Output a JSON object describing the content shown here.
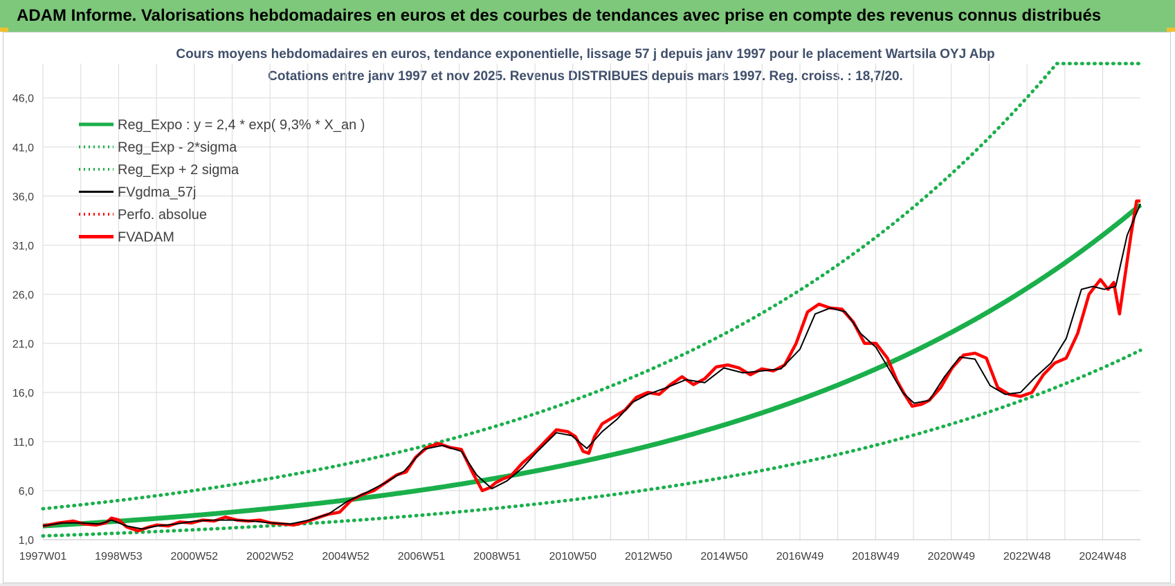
{
  "banner": {
    "title": "ADAM Informe. Valorisations hebdomadaires en euros et des courbes de tendances avec prise en compte des revenus connus distribués"
  },
  "chart_data": {
    "type": "line",
    "title_line1": "Cours moyens hebdomadaires en euros, tendance exponentielle, lissage 57 j depuis janv 1997  pour le placement Wartsila OYJ Abp",
    "title_line2": "Cotations entre janv 1997 et nov 2025. Revenus DISTRIBUES depuis mars 1997.  Reg. croiss. : 18,7/20.",
    "x_range": [
      1997.0,
      2025.85
    ],
    "ylim": [
      1.0,
      49.5
    ],
    "y_ticks": [
      1.0,
      6.0,
      11.0,
      16.0,
      21.0,
      26.0,
      31.0,
      36.0,
      41.0,
      46.0
    ],
    "y_tick_labels": [
      "1,0",
      "6,0",
      "11,0",
      "16,0",
      "21,0",
      "26,0",
      "31,0",
      "36,0",
      "41,0",
      "46,0"
    ],
    "x_ticks": [
      1997.0,
      1998.99,
      2000.98,
      2002.97,
      2004.96,
      2006.95,
      2008.94,
      2010.93,
      2012.92,
      2014.91,
      2016.9,
      2018.89,
      2020.88,
      2022.87,
      2024.86
    ],
    "x_tick_labels": [
      "1997W01",
      "1998W53",
      "2000W52",
      "2002W52",
      "2004W52",
      "2006W51",
      "2008W51",
      "2010W50",
      "2012W50",
      "2014W50",
      "2016W49",
      "2018W49",
      "2020W49",
      "2022W48",
      "2024W48"
    ],
    "trend": {
      "a": 2.4,
      "rate": 0.093,
      "sigma_factor": 1.73
    },
    "legend": [
      {
        "label": "Reg_Expo : y = 2,4 * exp( 9,3% *  X_an )",
        "color": "#1aaf4b",
        "style": "solid-thick"
      },
      {
        "label": "Reg_Exp - 2*sigma",
        "color": "#1aaf4b",
        "style": "dotted"
      },
      {
        "label": "Reg_Exp + 2 sigma",
        "color": "#1aaf4b",
        "style": "dotted"
      },
      {
        "label": "FVgdma_57j",
        "color": "#000000",
        "style": "solid"
      },
      {
        "label": "Perfo. absolue",
        "color": "#ff0000",
        "style": "dotted"
      },
      {
        "label": "FVADAM",
        "color": "#ff0000",
        "style": "solid-thick"
      }
    ],
    "series": [
      {
        "name": "FVADAM",
        "x": [
          1997.0,
          1997.4,
          1997.8,
          1998.1,
          1998.4,
          1998.65,
          1998.8,
          1999.0,
          1999.2,
          1999.5,
          1999.8,
          2000.0,
          2000.3,
          2000.6,
          2000.9,
          2001.2,
          2001.5,
          2001.8,
          2002.1,
          2002.4,
          2002.7,
          2003.0,
          2003.3,
          2003.6,
          2003.9,
          2004.2,
          2004.5,
          2004.8,
          2005.1,
          2005.4,
          2005.7,
          2006.0,
          2006.3,
          2006.55,
          2006.8,
          2007.1,
          2007.4,
          2007.7,
          2008.0,
          2008.3,
          2008.55,
          2008.75,
          2008.9,
          2009.1,
          2009.3,
          2009.6,
          2009.9,
          2010.2,
          2010.5,
          2010.8,
          2011.0,
          2011.2,
          2011.35,
          2011.5,
          2011.7,
          2012.0,
          2012.3,
          2012.6,
          2012.9,
          2013.2,
          2013.5,
          2013.8,
          2014.1,
          2014.4,
          2014.7,
          2015.0,
          2015.3,
          2015.6,
          2015.9,
          2016.2,
          2016.5,
          2016.8,
          2017.1,
          2017.4,
          2017.7,
          2018.0,
          2018.3,
          2018.6,
          2018.9,
          2019.2,
          2019.45,
          2019.65,
          2019.85,
          2020.1,
          2020.3,
          2020.6,
          2020.9,
          2021.2,
          2021.5,
          2021.8,
          2022.1,
          2022.4,
          2022.7,
          2023.0,
          2023.3,
          2023.6,
          2023.9,
          2024.2,
          2024.5,
          2024.8,
          2025.0,
          2025.15,
          2025.3,
          2025.45,
          2025.6,
          2025.75,
          2025.85
        ],
        "y": [
          2.4,
          2.7,
          2.9,
          2.6,
          2.5,
          2.7,
          3.2,
          3.0,
          2.3,
          1.9,
          2.3,
          2.5,
          2.4,
          2.8,
          2.7,
          3.0,
          2.9,
          3.3,
          3.0,
          2.9,
          3.0,
          2.7,
          2.6,
          2.5,
          2.8,
          3.2,
          3.6,
          3.8,
          5.0,
          5.6,
          6.0,
          6.8,
          7.6,
          7.9,
          9.4,
          10.4,
          10.8,
          10.4,
          10.2,
          7.8,
          6.0,
          6.3,
          6.8,
          7.2,
          7.5,
          8.8,
          9.8,
          11.0,
          12.2,
          12.0,
          11.5,
          10.0,
          9.8,
          11.5,
          12.8,
          13.5,
          14.2,
          15.5,
          16.0,
          15.8,
          16.8,
          17.6,
          16.8,
          17.4,
          18.6,
          18.8,
          18.5,
          17.8,
          18.4,
          18.2,
          18.8,
          21.0,
          24.2,
          25.0,
          24.6,
          24.5,
          23.2,
          21.0,
          21.0,
          19.5,
          17.2,
          15.8,
          14.6,
          14.8,
          15.2,
          16.5,
          18.5,
          19.8,
          20.0,
          19.5,
          16.5,
          15.8,
          15.6,
          16.0,
          17.8,
          19.0,
          19.5,
          22.0,
          26.0,
          27.5,
          26.5,
          27.2,
          24.0,
          28.0,
          32.0,
          35.5,
          35.5
        ],
        "color": "#ff0000"
      },
      {
        "name": "FVgdma_57j",
        "x": [
          1997.0,
          1997.5,
          1998.0,
          1998.5,
          1998.8,
          1999.2,
          1999.6,
          2000.0,
          2000.5,
          2001.0,
          2001.5,
          2002.0,
          2002.5,
          2003.0,
          2003.5,
          2004.0,
          2004.5,
          2005.0,
          2005.5,
          2006.0,
          2006.5,
          2007.0,
          2007.5,
          2008.0,
          2008.4,
          2008.8,
          2009.2,
          2009.6,
          2010.0,
          2010.5,
          2010.9,
          2011.3,
          2011.7,
          2012.1,
          2012.5,
          2012.9,
          2013.4,
          2013.9,
          2014.4,
          2014.9,
          2015.4,
          2015.9,
          2016.4,
          2016.9,
          2017.3,
          2017.7,
          2018.1,
          2018.5,
          2018.9,
          2019.3,
          2019.6,
          2019.9,
          2020.3,
          2020.7,
          2021.1,
          2021.5,
          2021.9,
          2022.3,
          2022.7,
          2023.1,
          2023.5,
          2023.9,
          2024.3,
          2024.6,
          2024.9,
          2025.2,
          2025.5,
          2025.85
        ],
        "y": [
          2.4,
          2.7,
          2.7,
          2.6,
          3.0,
          2.4,
          2.1,
          2.4,
          2.6,
          2.9,
          3.0,
          3.0,
          2.9,
          2.7,
          2.6,
          3.0,
          3.6,
          4.9,
          5.8,
          6.8,
          8.0,
          10.2,
          10.6,
          10.0,
          7.6,
          6.2,
          7.0,
          8.3,
          10.0,
          11.9,
          11.6,
          10.3,
          12.0,
          13.3,
          15.0,
          15.8,
          16.5,
          17.3,
          17.0,
          18.5,
          18.0,
          18.2,
          18.4,
          20.4,
          24.0,
          24.6,
          24.2,
          22.0,
          20.6,
          18.0,
          16.0,
          14.9,
          15.2,
          17.6,
          19.6,
          19.4,
          16.7,
          15.8,
          16.0,
          17.6,
          19.0,
          21.5,
          26.5,
          26.8,
          26.5,
          26.8,
          32.0,
          35.2
        ],
        "color": "#000000"
      }
    ]
  }
}
